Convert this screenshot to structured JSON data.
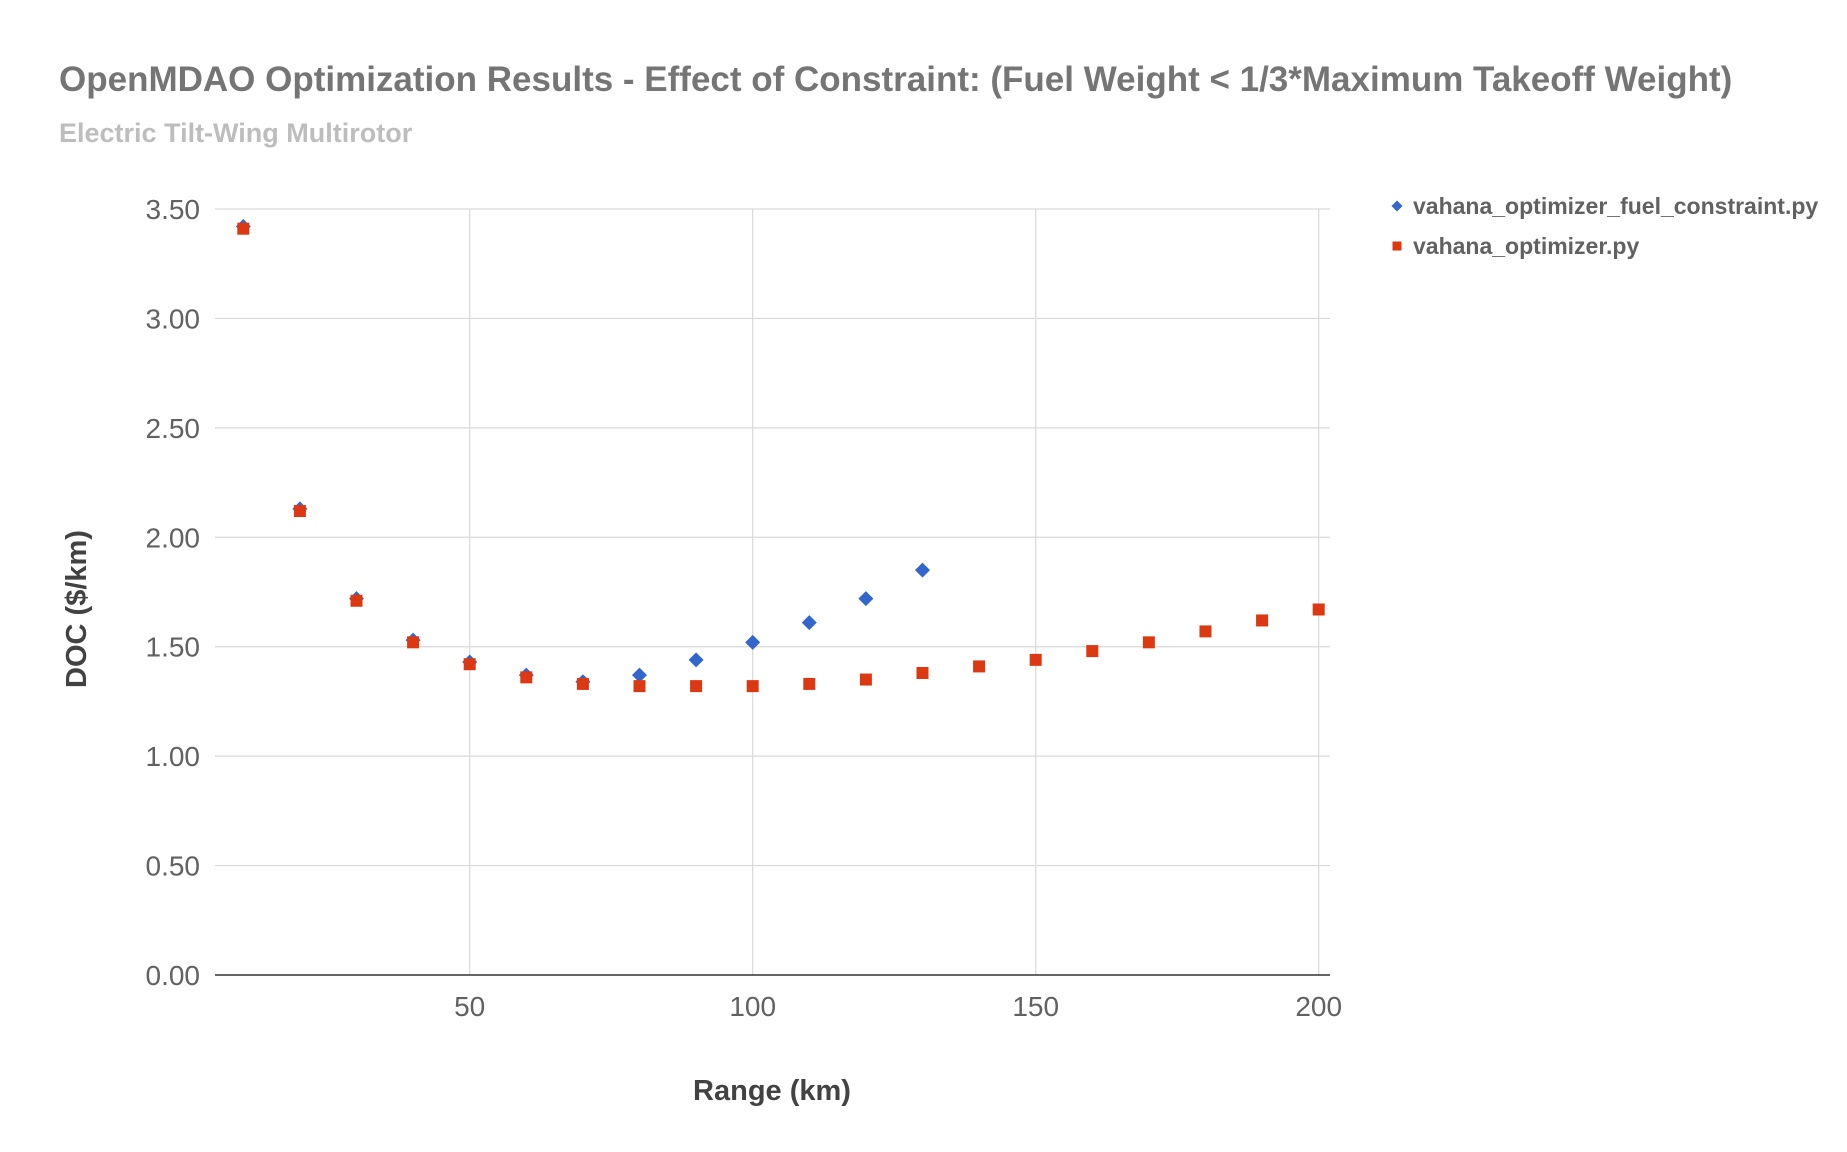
{
  "chart_data": {
    "type": "scatter",
    "title": "OpenMDAO Optimization Results - Effect of Constraint: (Fuel Weight < 1/3*Maximum Takeoff Weight)",
    "subtitle": "Electric Tilt-Wing Multirotor",
    "xlabel": "Range (km)",
    "ylabel": "DOC ($/km)",
    "xlim": [
      5,
      202
    ],
    "ylim": [
      0,
      3.5
    ],
    "x_ticks": [
      "50",
      "100",
      "150",
      "200"
    ],
    "x_tick_values": [
      50,
      100,
      150,
      200
    ],
    "y_ticks": [
      "0.00",
      "0.50",
      "1.00",
      "1.50",
      "2.00",
      "2.50",
      "3.00",
      "3.50"
    ],
    "y_tick_values": [
      0,
      0.5,
      1,
      1.5,
      2,
      2.5,
      3,
      3.5
    ],
    "grid": true,
    "legend_position": "right",
    "series": [
      {
        "name": "vahana_optimizer_fuel_constraint.py",
        "marker": "diamond",
        "color": "#3366cc",
        "x": [
          10,
          20,
          30,
          40,
          50,
          60,
          70,
          80,
          90,
          100,
          110,
          120,
          130
        ],
        "y": [
          3.42,
          2.13,
          1.72,
          1.53,
          1.43,
          1.37,
          1.34,
          1.37,
          1.44,
          1.52,
          1.61,
          1.72,
          1.85
        ]
      },
      {
        "name": "vahana_optimizer.py",
        "marker": "square",
        "color": "#dc3912",
        "x": [
          10,
          20,
          30,
          40,
          50,
          60,
          70,
          80,
          90,
          100,
          110,
          120,
          130,
          140,
          150,
          160,
          170,
          180,
          190,
          200
        ],
        "y": [
          3.41,
          2.12,
          1.71,
          1.52,
          1.42,
          1.36,
          1.33,
          1.32,
          1.32,
          1.32,
          1.33,
          1.35,
          1.38,
          1.41,
          1.44,
          1.48,
          1.52,
          1.57,
          1.62,
          1.67
        ]
      }
    ]
  }
}
